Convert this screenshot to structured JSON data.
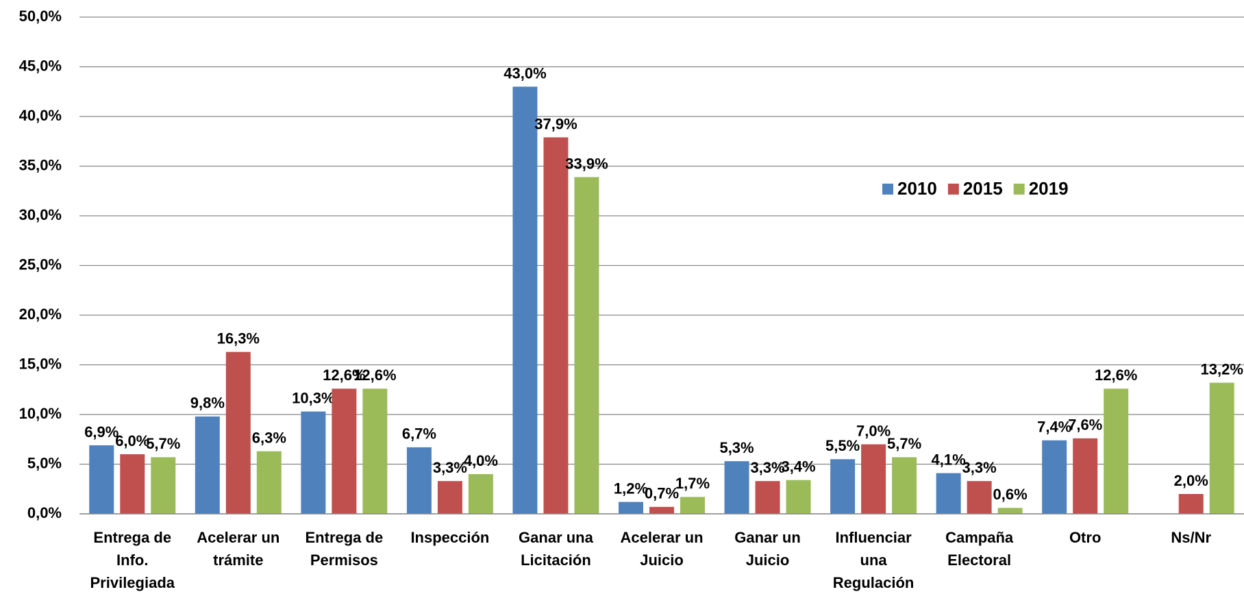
{
  "chart_data": {
    "type": "bar",
    "categories": [
      "Entrega de Info. Privilegiada",
      "Acelerar un trámite",
      "Entrega de Permisos",
      "Inspección",
      "Ganar una Licitación",
      "Acelerar un Juicio",
      "Ganar un Juicio",
      "Influenciar una Regulación",
      "Campaña Electoral",
      "Otro",
      "Ns/Nr"
    ],
    "series": [
      {
        "name": "2010",
        "color": "#4f81bd",
        "values": [
          6.9,
          9.8,
          10.3,
          6.7,
          43.0,
          1.2,
          5.3,
          5.5,
          4.1,
          7.4,
          null
        ],
        "value_labels": [
          "6,9%",
          "9,8%",
          "10,3%",
          "6,7%",
          "43,0%",
          "1,2%",
          "5,3%",
          "5,5%",
          "4,1%",
          "7,4%",
          null
        ]
      },
      {
        "name": "2015",
        "color": "#c0504d",
        "values": [
          6.0,
          16.3,
          12.6,
          3.3,
          37.9,
          0.7,
          3.3,
          7.0,
          3.3,
          7.6,
          2.0
        ],
        "value_labels": [
          "6,0%",
          "16,3%",
          "12,6%",
          "3,3%",
          "37,9%",
          "0,7%",
          "3,3%",
          "7,0%",
          "3,3%",
          "7,6%",
          "2,0%"
        ]
      },
      {
        "name": "2019",
        "color": "#9bbb59",
        "values": [
          5.7,
          6.3,
          12.6,
          4.0,
          33.9,
          1.7,
          3.4,
          5.7,
          0.6,
          12.6,
          13.2
        ],
        "value_labels": [
          "5,7%",
          "6,3%",
          "12,6%",
          "4,0%",
          "33,9%",
          "1,7%",
          "3,4%",
          "5,7%",
          "0,6%",
          "12,6%",
          "13,2%"
        ]
      }
    ],
    "ylim": [
      0,
      50
    ],
    "yticks": [
      {
        "value": 0,
        "label": "0,0%"
      },
      {
        "value": 5,
        "label": "5,0%"
      },
      {
        "value": 10,
        "label": "10,0%"
      },
      {
        "value": 15,
        "label": "15,0%"
      },
      {
        "value": 20,
        "label": "20,0%"
      },
      {
        "value": 25,
        "label": "25,0%"
      },
      {
        "value": 30,
        "label": "30,0%"
      },
      {
        "value": 35,
        "label": "35,0%"
      },
      {
        "value": 40,
        "label": "40,0%"
      },
      {
        "value": 45,
        "label": "45,0%"
      },
      {
        "value": 50,
        "label": "50,0%"
      }
    ],
    "grid": true,
    "legend": "upper right"
  }
}
